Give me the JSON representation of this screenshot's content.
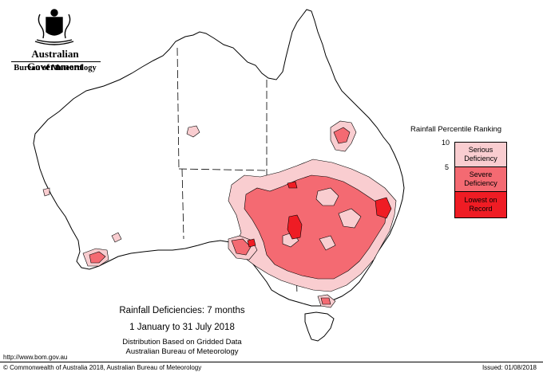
{
  "header": {
    "government": "Australian Government",
    "bureau": "Bureau of Meteorology"
  },
  "legend": {
    "title": "Rainfall Percentile Ranking",
    "ticks": [
      "10",
      "5"
    ],
    "items": [
      {
        "label_line1": "Serious",
        "label_line2": "Deficiency",
        "color": "#f9cdd0"
      },
      {
        "label_line1": "Severe",
        "label_line2": "Deficiency",
        "color": "#f46a72"
      },
      {
        "label_line1": "Lowest on",
        "label_line2": "Record",
        "color": "#ef1c24"
      }
    ]
  },
  "caption": {
    "line1": "Rainfall Deficiencies: 7 months",
    "line2": "1 January to 31 July 2018",
    "line3": "Distribution Based on Gridded Data",
    "line4": "Australian Bureau of Meteorology"
  },
  "footer": {
    "url": "http://www.bom.gov.au",
    "copyright": "© Commonwealth of Australia 2018, Australian Bureau of Meteorology",
    "issued": "Issued: 01/08/2018"
  },
  "colors": {
    "serious": "#f9cdd0",
    "severe": "#f46a72",
    "record": "#ef1c24",
    "outline": "#000000"
  }
}
